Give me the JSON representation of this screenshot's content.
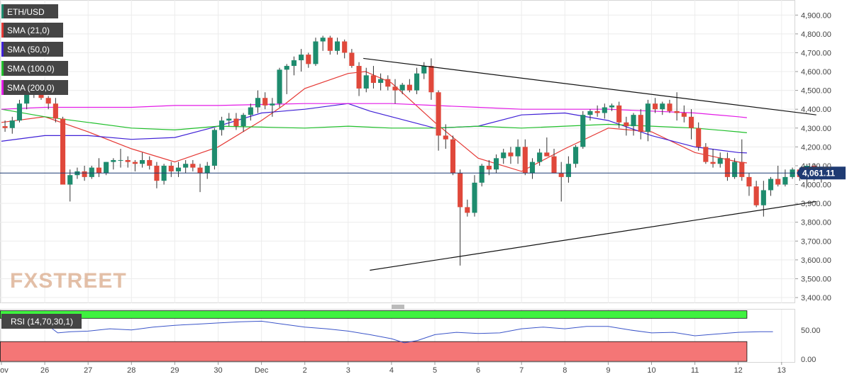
{
  "chart_data": {
    "type": "candlestick",
    "symbol": "ETH/USD",
    "indicators": [
      {
        "name": "SMA (21,0)",
        "color": "#e53935"
      },
      {
        "name": "SMA (50,0)",
        "color": "#3f20d6"
      },
      {
        "name": "SMA (100,0)",
        "color": "#1fbf2a"
      },
      {
        "name": "SMA (200,0)",
        "color": "#e31ae6"
      }
    ],
    "colors": {
      "up": "#1e8c6e",
      "down": "#e0483b",
      "wick": "#333333"
    },
    "y_axis": {
      "ylim": [
        3370,
        4980
      ],
      "ticks": [
        "4,900.00",
        "4,800.00",
        "4,700.00",
        "4,600.00",
        "4,500.00",
        "4,400.00",
        "4,300.00",
        "4,200.00",
        "4,100.00",
        "4,000.00",
        "3,900.00",
        "3,800.00",
        "3,700.00",
        "3,600.00",
        "3,500.00",
        "3,400.00"
      ],
      "tick_values": [
        4900,
        4800,
        4700,
        4600,
        4500,
        4400,
        4300,
        4200,
        4100,
        4000,
        3900,
        3800,
        3700,
        3600,
        3500,
        3400
      ]
    },
    "x_axis": {
      "labels": [
        "Nov",
        "26",
        "27",
        "28",
        "29",
        "30",
        "Dec",
        "2",
        "3",
        "4",
        "5",
        "6",
        "7",
        "8",
        "9",
        "10",
        "11",
        "12",
        "13"
      ],
      "label_days": [
        0,
        1,
        2,
        3,
        4,
        5,
        6,
        7,
        8,
        9,
        10,
        11,
        12,
        13,
        14,
        15,
        16,
        17,
        18
      ],
      "first_day": "Nov 25",
      "candles_per_day": 6
    },
    "last_price": {
      "value": 4061.11,
      "label": "4,061.11"
    },
    "candles": [
      [
        4310,
        4340,
        4280,
        4300
      ],
      [
        4300,
        4360,
        4270,
        4340
      ],
      [
        4340,
        4450,
        4330,
        4430
      ],
      [
        4430,
        4530,
        4400,
        4500
      ],
      [
        4500,
        4540,
        4460,
        4480
      ],
      [
        4480,
        4520,
        4450,
        4460
      ],
      [
        4460,
        4470,
        4400,
        4430
      ],
      [
        4430,
        4460,
        4330,
        4350
      ],
      [
        4350,
        4360,
        4010,
        4000
      ],
      [
        4000,
        4080,
        3910,
        4050
      ],
      [
        4050,
        4090,
        4030,
        4070
      ],
      [
        4070,
        4100,
        4020,
        4040
      ],
      [
        4040,
        4100,
        4030,
        4090
      ],
      [
        4090,
        4140,
        4040,
        4060
      ],
      [
        4060,
        4120,
        4050,
        4120
      ],
      [
        4120,
        4140,
        4080,
        4130
      ],
      [
        4130,
        4190,
        4090,
        4130
      ],
      [
        4130,
        4150,
        4090,
        4120
      ],
      [
        4120,
        4130,
        4070,
        4110
      ],
      [
        4110,
        4170,
        4090,
        4130
      ],
      [
        4130,
        4150,
        4080,
        4100
      ],
      [
        4100,
        4120,
        3980,
        4020
      ],
      [
        4020,
        4110,
        4000,
        4100
      ],
      [
        4100,
        4120,
        4040,
        4070
      ],
      [
        4070,
        4120,
        4040,
        4090
      ],
      [
        4090,
        4130,
        4060,
        4110
      ],
      [
        4110,
        4130,
        4070,
        4090
      ],
      [
        4090,
        4110,
        3960,
        4060
      ],
      [
        4060,
        4120,
        4030,
        4100
      ],
      [
        4100,
        4300,
        4080,
        4290
      ],
      [
        4290,
        4360,
        4260,
        4340
      ],
      [
        4340,
        4380,
        4310,
        4350
      ],
      [
        4350,
        4380,
        4290,
        4310
      ],
      [
        4310,
        4380,
        4280,
        4370
      ],
      [
        4370,
        4430,
        4340,
        4410
      ],
      [
        4410,
        4500,
        4380,
        4460
      ],
      [
        4460,
        4490,
        4400,
        4420
      ],
      [
        4420,
        4460,
        4360,
        4430
      ],
      [
        4430,
        4620,
        4410,
        4610
      ],
      [
        4610,
        4640,
        4480,
        4630
      ],
      [
        4630,
        4680,
        4580,
        4660
      ],
      [
        4660,
        4720,
        4600,
        4690
      ],
      [
        4690,
        4700,
        4620,
        4640
      ],
      [
        4640,
        4780,
        4630,
        4760
      ],
      [
        4760,
        4790,
        4710,
        4780
      ],
      [
        4780,
        4790,
        4690,
        4710
      ],
      [
        4710,
        4780,
        4690,
        4760
      ],
      [
        4760,
        4770,
        4670,
        4700
      ],
      [
        4700,
        4720,
        4620,
        4630
      ],
      [
        4630,
        4650,
        4470,
        4510
      ],
      [
        4510,
        4620,
        4490,
        4580
      ],
      [
        4580,
        4630,
        4510,
        4540
      ],
      [
        4540,
        4590,
        4500,
        4560
      ],
      [
        4560,
        4580,
        4500,
        4520
      ],
      [
        4520,
        4560,
        4430,
        4500
      ],
      [
        4500,
        4540,
        4480,
        4530
      ],
      [
        4530,
        4560,
        4490,
        4500
      ],
      [
        4500,
        4620,
        4480,
        4590
      ],
      [
        4590,
        4650,
        4560,
        4630
      ],
      [
        4630,
        4670,
        4450,
        4490
      ],
      [
        4490,
        4500,
        4180,
        4260
      ],
      [
        4260,
        4320,
        4190,
        4240
      ],
      [
        4240,
        4260,
        4050,
        4060
      ],
      [
        4060,
        4080,
        3570,
        3880
      ],
      [
        3880,
        3920,
        3830,
        3850
      ],
      [
        3850,
        4050,
        3830,
        4010
      ],
      [
        4010,
        4110,
        3990,
        4100
      ],
      [
        4100,
        4130,
        4050,
        4080
      ],
      [
        4080,
        4160,
        4060,
        4140
      ],
      [
        4140,
        4190,
        4110,
        4170
      ],
      [
        4170,
        4200,
        4110,
        4150
      ],
      [
        4150,
        4240,
        4110,
        4200
      ],
      [
        4200,
        4240,
        4050,
        4060
      ],
      [
        4060,
        4140,
        4030,
        4120
      ],
      [
        4120,
        4190,
        4100,
        4170
      ],
      [
        4170,
        4250,
        4160,
        4150
      ],
      [
        4150,
        4190,
        4060,
        4060
      ],
      [
        4060,
        4120,
        3910,
        4040
      ],
      [
        4040,
        4150,
        4010,
        4110
      ],
      [
        4110,
        4210,
        4090,
        4200
      ],
      [
        4200,
        4390,
        4190,
        4370
      ],
      [
        4370,
        4400,
        4340,
        4390
      ],
      [
        4390,
        4420,
        4360,
        4380
      ],
      [
        4380,
        4430,
        4350,
        4410
      ],
      [
        4410,
        4430,
        4390,
        4420
      ],
      [
        4420,
        4440,
        4300,
        4330
      ],
      [
        4330,
        4360,
        4260,
        4310
      ],
      [
        4310,
        4380,
        4260,
        4370
      ],
      [
        4370,
        4400,
        4240,
        4280
      ],
      [
        4280,
        4450,
        4230,
        4430
      ],
      [
        4430,
        4460,
        4380,
        4400
      ],
      [
        4400,
        4440,
        4370,
        4430
      ],
      [
        4430,
        4450,
        4380,
        4390
      ],
      [
        4390,
        4490,
        4340,
        4380
      ],
      [
        4380,
        4420,
        4330,
        4360
      ],
      [
        4360,
        4400,
        4240,
        4300
      ],
      [
        4300,
        4330,
        4180,
        4200
      ],
      [
        4200,
        4220,
        4110,
        4120
      ],
      [
        4120,
        4190,
        4090,
        4110
      ],
      [
        4110,
        4170,
        4090,
        4140
      ],
      [
        4140,
        4170,
        4020,
        4040
      ],
      [
        4040,
        4140,
        4030,
        4120
      ],
      [
        4120,
        4240,
        4020,
        4040
      ],
      [
        4040,
        4060,
        3940,
        3990
      ],
      [
        3990,
        4020,
        3880,
        3890
      ],
      [
        3890,
        4020,
        3830,
        3970
      ],
      [
        3970,
        4040,
        3940,
        4030
      ],
      [
        4030,
        4100,
        3990,
        4000
      ],
      [
        4000,
        4080,
        3990,
        4040
      ],
      [
        4040,
        4090,
        4030,
        4080
      ],
      [
        4080,
        4090,
        4020,
        4040
      ],
      [
        4040,
        4110,
        3990,
        4100
      ],
      [
        4100,
        4110,
        4020,
        4060
      ],
      [
        4060,
        4080,
        4010,
        4061
      ]
    ],
    "sma": {
      "SMA (21,0)": [
        [
          0,
          4330
        ],
        [
          1,
          4360
        ],
        [
          2,
          4280
        ],
        [
          3,
          4190
        ],
        [
          4,
          4120
        ],
        [
          5,
          4200
        ],
        [
          6,
          4340
        ],
        [
          6.5,
          4420
        ],
        [
          7,
          4510
        ],
        [
          8,
          4590
        ],
        [
          8.4,
          4600
        ],
        [
          9,
          4540
        ],
        [
          10,
          4330
        ],
        [
          11,
          4140
        ],
        [
          12,
          4070
        ],
        [
          13,
          4190
        ],
        [
          14,
          4300
        ],
        [
          15,
          4280
        ],
        [
          16,
          4170
        ],
        [
          17,
          4120
        ],
        [
          17.2,
          4115
        ]
      ],
      "SMA (50,0)": [
        [
          0,
          4230
        ],
        [
          1,
          4260
        ],
        [
          2,
          4260
        ],
        [
          3,
          4240
        ],
        [
          4,
          4250
        ],
        [
          5,
          4310
        ],
        [
          6,
          4380
        ],
        [
          7,
          4400
        ],
        [
          8,
          4430
        ],
        [
          8.5,
          4390
        ],
        [
          9,
          4360
        ],
        [
          10,
          4300
        ],
        [
          11,
          4310
        ],
        [
          12,
          4370
        ],
        [
          13,
          4380
        ],
        [
          14,
          4340
        ],
        [
          15,
          4260
        ],
        [
          16,
          4200
        ],
        [
          17,
          4170
        ],
        [
          17.2,
          4168
        ]
      ],
      "SMA (100,0)": [
        [
          0,
          4400
        ],
        [
          1,
          4360
        ],
        [
          2,
          4330
        ],
        [
          3,
          4300
        ],
        [
          4,
          4290
        ],
        [
          5,
          4310
        ],
        [
          6,
          4305
        ],
        [
          7,
          4300
        ],
        [
          8,
          4310
        ],
        [
          9,
          4300
        ],
        [
          10,
          4300
        ],
        [
          11,
          4310
        ],
        [
          12,
          4300
        ],
        [
          13,
          4310
        ],
        [
          14,
          4320
        ],
        [
          15,
          4310
        ],
        [
          16,
          4300
        ],
        [
          17,
          4280
        ],
        [
          17.2,
          4275
        ]
      ],
      "SMA (200,0)": [
        [
          0,
          4400
        ],
        [
          1,
          4410
        ],
        [
          2,
          4410
        ],
        [
          3,
          4410
        ],
        [
          4,
          4420
        ],
        [
          5,
          4420
        ],
        [
          6,
          4425
        ],
        [
          7,
          4430
        ],
        [
          8,
          4430
        ],
        [
          9,
          4430
        ],
        [
          10,
          4420
        ],
        [
          11,
          4410
        ],
        [
          12,
          4400
        ],
        [
          13,
          4400
        ],
        [
          14,
          4400
        ],
        [
          15,
          4390
        ],
        [
          16,
          4380
        ],
        [
          17,
          4360
        ],
        [
          17.2,
          4355
        ]
      ]
    },
    "trendlines": [
      {
        "from": [
          8.35,
          4670
        ],
        "to": [
          18.8,
          4370
        ]
      },
      {
        "from": [
          8.5,
          3545
        ],
        "to": [
          18.8,
          3910
        ]
      }
    ],
    "rsi": {
      "label": "RSI (14,70,30,1)",
      "ticks": [
        "50.00",
        "0.00"
      ],
      "tick_values": [
        50,
        0
      ],
      "ylim": [
        -5,
        85
      ],
      "upper_level": 70,
      "lower_level": 30,
      "upper_color": "#3ff23f",
      "lower_color": "#f47676",
      "line_color": "#3b55c9",
      "values": [
        [
          0,
          55
        ],
        [
          0.5,
          60
        ],
        [
          1,
          62
        ],
        [
          1.3,
          45
        ],
        [
          1.6,
          47
        ],
        [
          2,
          48
        ],
        [
          2.5,
          52
        ],
        [
          3,
          50
        ],
        [
          3.5,
          55
        ],
        [
          4,
          58
        ],
        [
          4.5,
          60
        ],
        [
          5,
          62
        ],
        [
          5.5,
          64
        ],
        [
          6,
          65
        ],
        [
          6.5,
          60
        ],
        [
          7,
          55
        ],
        [
          7.5,
          52
        ],
        [
          8,
          48
        ],
        [
          8.5,
          42
        ],
        [
          9,
          35
        ],
        [
          9.3,
          28
        ],
        [
          9.6,
          32
        ],
        [
          10,
          42
        ],
        [
          10.5,
          46
        ],
        [
          11,
          44
        ],
        [
          11.5,
          45
        ],
        [
          12,
          52
        ],
        [
          12.5,
          55
        ],
        [
          13,
          52
        ],
        [
          13.5,
          56
        ],
        [
          14,
          56
        ],
        [
          14.5,
          50
        ],
        [
          15,
          45
        ],
        [
          15.5,
          46
        ],
        [
          16,
          40
        ],
        [
          16.5,
          43
        ],
        [
          17,
          46
        ],
        [
          17.5,
          47
        ],
        [
          17.8,
          47
        ]
      ]
    },
    "watermark": "FXSTREET"
  }
}
